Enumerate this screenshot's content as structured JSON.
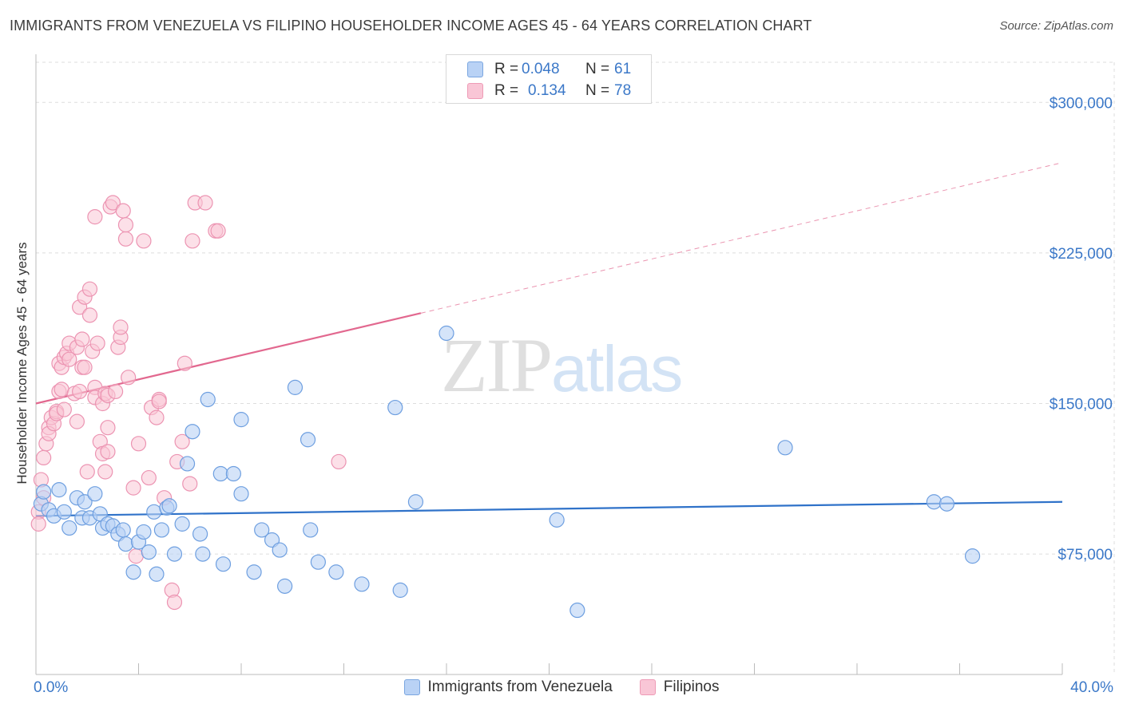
{
  "title": "IMMIGRANTS FROM VENEZUELA VS FILIPINO HOUSEHOLDER INCOME AGES 45 - 64 YEARS CORRELATION CHART",
  "source": "Source: ZipAtlas.com",
  "watermark": {
    "zip": "ZIP",
    "atlas": "atlas"
  },
  "stats": [
    {
      "r_label": "R =",
      "r_value": "0.048",
      "n_label": "N =",
      "n_value": "61"
    },
    {
      "r_label": "R =",
      "r_value": "0.134",
      "n_label": "N =",
      "n_value": "78"
    }
  ],
  "legend": [
    "Immigrants from Venezuela",
    "Filipinos"
  ],
  "x_min_label": "0.0%",
  "x_max_label": "40.0%",
  "colors": {
    "blue_fill": "#b9d2f5",
    "blue_stroke": "#6e9fe0",
    "blue_line": "#2f72c9",
    "pink_fill": "#f9c6d6",
    "pink_stroke": "#ec94b2",
    "pink_line": "#e2688f",
    "tick_text": "#3b78c8",
    "grid": "#dddddd"
  },
  "chart_data": {
    "type": "scatter",
    "title": "IMMIGRANTS FROM VENEZUELA VS FILIPINO HOUSEHOLDER INCOME AGES 45 - 64 YEARS CORRELATION CHART",
    "xlabel": "",
    "ylabel": "Householder Income Ages 45 - 64 years",
    "xlim": [
      0,
      40
    ],
    "ylim": [
      15000,
      320000
    ],
    "y_ticks": [
      75000,
      150000,
      225000,
      300000
    ],
    "y_tick_labels": [
      "$75,000",
      "$150,000",
      "$225,000",
      "$300,000"
    ],
    "legend_position": "top-center",
    "series": [
      {
        "name": "Immigrants from Venezuela",
        "r": 0.048,
        "n": 61,
        "trend": {
          "x": [
            0,
            40
          ],
          "y": [
            94000,
            101000
          ],
          "style": "solid"
        },
        "points": [
          [
            0.2,
            100000
          ],
          [
            0.3,
            106000
          ],
          [
            0.5,
            97000
          ],
          [
            0.7,
            94000
          ],
          [
            0.9,
            107000
          ],
          [
            1.1,
            96000
          ],
          [
            1.3,
            88000
          ],
          [
            1.6,
            103000
          ],
          [
            1.8,
            93000
          ],
          [
            1.9,
            101000
          ],
          [
            2.1,
            93000
          ],
          [
            2.3,
            105000
          ],
          [
            2.5,
            95000
          ],
          [
            2.6,
            88000
          ],
          [
            2.8,
            90000
          ],
          [
            3.0,
            89000
          ],
          [
            3.2,
            85000
          ],
          [
            3.4,
            87000
          ],
          [
            3.5,
            80000
          ],
          [
            3.8,
            66000
          ],
          [
            4.0,
            81000
          ],
          [
            4.2,
            86000
          ],
          [
            4.4,
            76000
          ],
          [
            4.6,
            96000
          ],
          [
            4.7,
            65000
          ],
          [
            4.9,
            87000
          ],
          [
            5.1,
            98000
          ],
          [
            5.2,
            99000
          ],
          [
            5.4,
            75000
          ],
          [
            5.7,
            90000
          ],
          [
            5.9,
            120000
          ],
          [
            6.1,
            136000
          ],
          [
            6.4,
            85000
          ],
          [
            6.5,
            75000
          ],
          [
            6.7,
            152000
          ],
          [
            7.2,
            115000
          ],
          [
            7.3,
            70000
          ],
          [
            7.7,
            115000
          ],
          [
            8.0,
            105000
          ],
          [
            8.0,
            142000
          ],
          [
            8.5,
            66000
          ],
          [
            8.8,
            87000
          ],
          [
            9.2,
            82000
          ],
          [
            9.5,
            77000
          ],
          [
            9.7,
            59000
          ],
          [
            10.1,
            158000
          ],
          [
            10.6,
            132000
          ],
          [
            10.7,
            87000
          ],
          [
            11.0,
            71000
          ],
          [
            11.7,
            66000
          ],
          [
            12.7,
            60000
          ],
          [
            14.0,
            148000
          ],
          [
            14.2,
            57000
          ],
          [
            14.8,
            101000
          ],
          [
            16.0,
            185000
          ],
          [
            20.3,
            92000
          ],
          [
            21.1,
            47000
          ],
          [
            29.2,
            128000
          ],
          [
            35.0,
            101000
          ],
          [
            35.5,
            100000
          ],
          [
            36.5,
            74000
          ]
        ]
      },
      {
        "name": "Filipinos",
        "r": 0.134,
        "n": 78,
        "trend": {
          "x": [
            0,
            15
          ],
          "y": [
            150000,
            195000
          ],
          "style": "solid",
          "extension": {
            "x": [
              15,
              40
            ],
            "y": [
              195000,
              270000
            ],
            "style": "dashed"
          }
        },
        "points": [
          [
            0.1,
            96000
          ],
          [
            0.1,
            90000
          ],
          [
            0.2,
            112000
          ],
          [
            0.3,
            103000
          ],
          [
            0.3,
            123000
          ],
          [
            0.4,
            130000
          ],
          [
            0.5,
            138000
          ],
          [
            0.5,
            135000
          ],
          [
            0.6,
            143000
          ],
          [
            0.7,
            140000
          ],
          [
            0.8,
            146000
          ],
          [
            0.8,
            145000
          ],
          [
            0.9,
            156000
          ],
          [
            0.9,
            170000
          ],
          [
            1.0,
            157000
          ],
          [
            1.0,
            168000
          ],
          [
            1.1,
            147000
          ],
          [
            1.1,
            173000
          ],
          [
            1.2,
            175000
          ],
          [
            1.3,
            172000
          ],
          [
            1.3,
            180000
          ],
          [
            1.5,
            155000
          ],
          [
            1.6,
            141000
          ],
          [
            1.6,
            178000
          ],
          [
            1.7,
            156000
          ],
          [
            1.7,
            198000
          ],
          [
            1.8,
            182000
          ],
          [
            1.8,
            168000
          ],
          [
            1.9,
            168000
          ],
          [
            1.9,
            203000
          ],
          [
            2.0,
            116000
          ],
          [
            2.1,
            194000
          ],
          [
            2.1,
            207000
          ],
          [
            2.2,
            176000
          ],
          [
            2.3,
            158000
          ],
          [
            2.3,
            153000
          ],
          [
            2.3,
            243000
          ],
          [
            2.4,
            180000
          ],
          [
            2.5,
            131000
          ],
          [
            2.6,
            125000
          ],
          [
            2.6,
            150000
          ],
          [
            2.7,
            155000
          ],
          [
            2.7,
            116000
          ],
          [
            2.8,
            126000
          ],
          [
            2.8,
            154000
          ],
          [
            2.8,
            138000
          ],
          [
            2.9,
            248000
          ],
          [
            3.0,
            250000
          ],
          [
            3.1,
            156000
          ],
          [
            3.2,
            178000
          ],
          [
            3.3,
            183000
          ],
          [
            3.3,
            188000
          ],
          [
            3.4,
            246000
          ],
          [
            3.5,
            232000
          ],
          [
            3.5,
            239000
          ],
          [
            3.6,
            163000
          ],
          [
            3.8,
            108000
          ],
          [
            3.9,
            74000
          ],
          [
            4.0,
            130000
          ],
          [
            4.2,
            231000
          ],
          [
            4.4,
            113000
          ],
          [
            4.5,
            148000
          ],
          [
            4.7,
            143000
          ],
          [
            4.8,
            152000
          ],
          [
            4.8,
            151000
          ],
          [
            5.0,
            103000
          ],
          [
            5.3,
            57000
          ],
          [
            5.4,
            51000
          ],
          [
            5.5,
            121000
          ],
          [
            5.7,
            131000
          ],
          [
            5.8,
            170000
          ],
          [
            6.0,
            110000
          ],
          [
            6.1,
            231000
          ],
          [
            6.2,
            250000
          ],
          [
            6.6,
            250000
          ],
          [
            7.0,
            236000
          ],
          [
            7.1,
            236000
          ],
          [
            11.8,
            121000
          ]
        ]
      }
    ]
  }
}
